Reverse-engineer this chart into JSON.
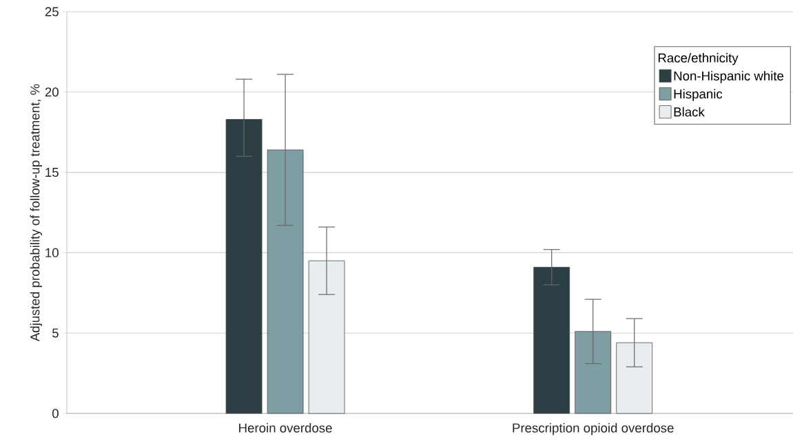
{
  "chart_data": {
    "type": "bar",
    "ylabel": "Adjusted probability of follow-up treatment, %",
    "legend_title": "Race/ethnicity",
    "categories": [
      "Heroin overdose",
      "Prescription opioid overdose"
    ],
    "series": [
      {
        "name": "Non-Hispanic white",
        "color": "#2b3e44",
        "values": [
          18.3,
          9.1
        ],
        "errors": [
          [
            16.0,
            20.8
          ],
          [
            8.0,
            10.2
          ]
        ]
      },
      {
        "name": "Hispanic",
        "color": "#7f9ea3",
        "values": [
          16.4,
          5.1
        ],
        "errors": [
          [
            11.7,
            21.1
          ],
          [
            3.1,
            7.1
          ]
        ]
      },
      {
        "name": "Black",
        "color": "#e8eef0",
        "values": [
          9.5,
          4.4
        ],
        "errors": [
          [
            7.4,
            11.6
          ],
          [
            2.9,
            5.9
          ]
        ]
      }
    ],
    "ylim": [
      0,
      25
    ],
    "yticks": [
      0,
      5,
      10,
      15,
      20,
      25
    ],
    "grid": "y",
    "legend": "top right"
  }
}
